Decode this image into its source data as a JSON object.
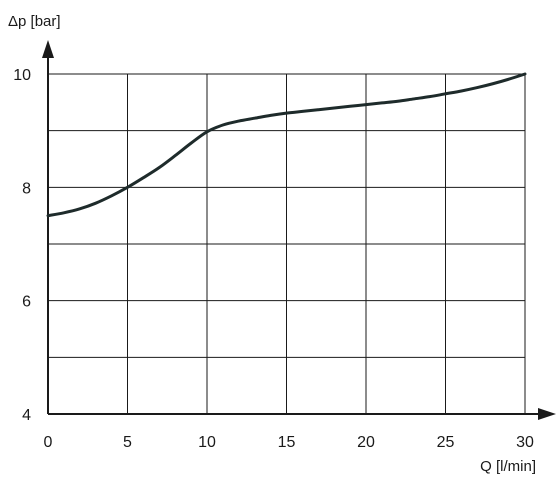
{
  "chart_data": {
    "type": "line",
    "title": "",
    "xlabel": "Q [l/min]",
    "ylabel": "Δp [bar]",
    "xlim": [
      0,
      30
    ],
    "ylim": [
      4,
      10
    ],
    "x_ticks": [
      0,
      5,
      10,
      15,
      20,
      25,
      30
    ],
    "y_ticks": [
      4,
      6,
      8,
      10
    ],
    "x_tick_labels": [
      "0",
      "5",
      "10",
      "15",
      "20",
      "25",
      "30"
    ],
    "y_tick_labels": [
      "4",
      "6",
      "8",
      "10"
    ],
    "grid": true,
    "legend": "none",
    "series": [
      {
        "x": [
          0,
          1,
          2,
          3,
          4,
          5,
          6,
          7,
          8,
          9,
          10,
          11,
          12,
          13,
          14,
          15,
          16,
          17,
          18,
          19,
          20,
          21,
          22,
          23,
          24,
          25,
          26,
          27,
          28,
          29,
          30
        ],
        "y": [
          7.5,
          7.55,
          7.62,
          7.72,
          7.85,
          8.0,
          8.17,
          8.35,
          8.56,
          8.78,
          8.98,
          9.1,
          9.17,
          9.22,
          9.27,
          9.31,
          9.34,
          9.37,
          9.4,
          9.43,
          9.46,
          9.49,
          9.52,
          9.56,
          9.6,
          9.65,
          9.7,
          9.76,
          9.83,
          9.91,
          10.0
        ],
        "color": "#1e2b2b"
      }
    ],
    "colors": {
      "axis": "#1a1a1a",
      "grid": "#1a1a1a",
      "curve": "#1e2b2b"
    }
  }
}
